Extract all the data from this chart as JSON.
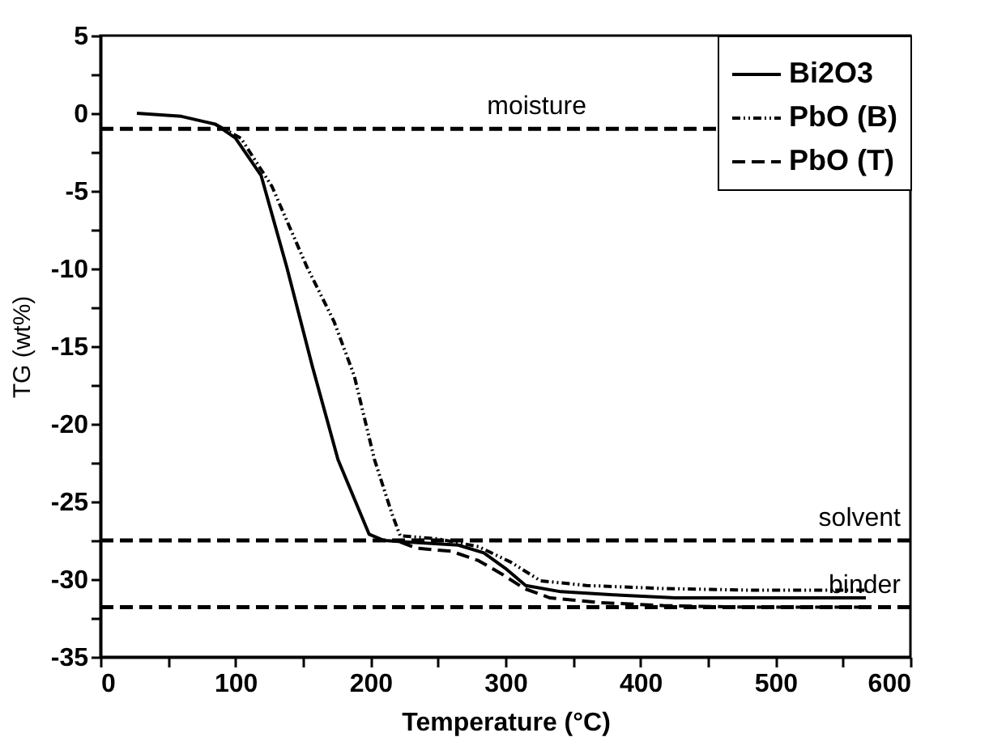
{
  "chart_data": {
    "type": "line",
    "xlabel": "Temperature (°C)",
    "ylabel": "TG (wt%)",
    "xlim": [
      0,
      600
    ],
    "ylim": [
      -35,
      5
    ],
    "xticks": [
      0,
      {
        "value": 50,
        "label": null
      },
      100,
      {
        "value": 150,
        "label": null
      },
      200,
      {
        "value": 250,
        "label": null
      },
      300,
      {
        "value": 350,
        "label": null
      },
      400,
      {
        "value": 450,
        "label": null
      },
      500,
      {
        "value": 550,
        "label": null
      },
      600
    ],
    "yticks": [
      -35,
      {
        "value": -32.5,
        "label": null
      },
      -30,
      {
        "value": -27.5,
        "label": null
      },
      -25,
      {
        "value": -22.5,
        "label": null
      },
      -20,
      {
        "value": -17.5,
        "label": null
      },
      -15,
      {
        "value": -12.5,
        "label": null
      },
      -10,
      {
        "value": -7.5,
        "label": null
      },
      -5,
      {
        "value": -2.5,
        "label": null
      },
      0,
      {
        "value": 2.5,
        "label": null
      },
      5
    ],
    "grid": false,
    "legend": "top right",
    "marker": "none",
    "series": [
      {
        "name": "Bi2O3",
        "color": "#000000",
        "line_style": "solid",
        "x": [
          27,
          60,
          85,
          100,
          119,
          138,
          157,
          176,
          199,
          210,
          227,
          265,
          284,
          300,
          315,
          341,
          380,
          426,
          480,
          567
        ],
        "values": [
          0,
          -0.2,
          -0.7,
          -1.6,
          -4.0,
          -9.9,
          -16.3,
          -22.3,
          -27.1,
          -27.5,
          -27.6,
          -27.8,
          -28.3,
          -29.3,
          -30.4,
          -30.8,
          -31.0,
          -31.2,
          -31.2,
          -31.2
        ]
      },
      {
        "name": "PbO (B)",
        "color": "#000000",
        "line_style": "dotted",
        "x": [
          85,
          104,
          127,
          153,
          173,
          188,
          203,
          216,
          222,
          250,
          280,
          304,
          326,
          360,
          418,
          480,
          567
        ],
        "values": [
          -0.7,
          -1.6,
          -4.7,
          -9.9,
          -13.4,
          -16.9,
          -22.3,
          -25.8,
          -27.2,
          -27.4,
          -27.9,
          -28.9,
          -30.1,
          -30.4,
          -30.6,
          -30.7,
          -30.7
        ]
      },
      {
        "name": "PbO (T)",
        "color": "#000000",
        "line_style": "dashed",
        "x": [
          222,
          234,
          260,
          280,
          298,
          314,
          333,
          370,
          418,
          480,
          567
        ],
        "values": [
          -27.6,
          -28.0,
          -28.2,
          -28.8,
          -29.7,
          -30.6,
          -31.2,
          -31.5,
          -31.7,
          -31.8,
          -31.8
        ]
      }
    ],
    "ref_lines": [
      {
        "axis": "y",
        "value": -1,
        "label": "moisture",
        "color": "#000000",
        "line_style": "dashed"
      },
      {
        "axis": "y",
        "value": -27.5,
        "label": "solvent",
        "color": "#000000",
        "line_style": "dashed"
      },
      {
        "axis": "y",
        "value": -31.8,
        "label": "binder",
        "color": "#000000",
        "line_style": "dashed"
      }
    ]
  }
}
